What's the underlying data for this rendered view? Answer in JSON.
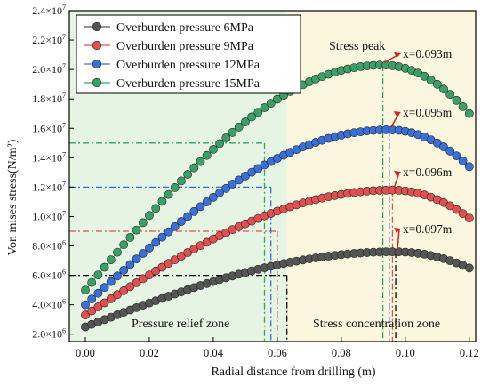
{
  "chart_data": {
    "type": "scatter",
    "xlabel": "Radial distance from drilling (m)",
    "ylabel": "Von mises stress(N/m²)",
    "xlim": [
      -0.005,
      0.122
    ],
    "ylim": [
      1500000,
      24000000
    ],
    "x_ticks": [
      0.0,
      0.02,
      0.04,
      0.06,
      0.08,
      0.1,
      0.12
    ],
    "x_tick_labels": [
      "0.00",
      "0.02",
      "0.04",
      "0.06",
      "0.08",
      "0.10",
      "0.12"
    ],
    "y_ticks": [
      2000000,
      4000000,
      6000000,
      8000000,
      10000000,
      12000000,
      14000000,
      16000000,
      18000000,
      20000000,
      22000000,
      24000000
    ],
    "y_tick_labels": [
      {
        "mant": "2.0",
        "exp": "6"
      },
      {
        "mant": "4.0",
        "exp": "6"
      },
      {
        "mant": "6.0",
        "exp": "6"
      },
      {
        "mant": "8.0",
        "exp": "6"
      },
      {
        "mant": "1.0",
        "exp": "7"
      },
      {
        "mant": "1.2",
        "exp": "7"
      },
      {
        "mant": "1.4",
        "exp": "7"
      },
      {
        "mant": "1.6",
        "exp": "7"
      },
      {
        "mant": "1.8",
        "exp": "7"
      },
      {
        "mant": "2.0",
        "exp": "7"
      },
      {
        "mant": "2.2",
        "exp": "7"
      },
      {
        "mant": "2.4",
        "exp": "7"
      }
    ],
    "y_tick_base": "×10",
    "legend_position": "top-left",
    "zones": [
      {
        "label": "Pressure relief zone",
        "x_range": [
          -0.005,
          0.063
        ],
        "color": "#e6f5e3"
      },
      {
        "label": "Stress concentration zone",
        "x_range": [
          0.063,
          0.122
        ],
        "color": "#fbf7df"
      }
    ],
    "peak_label": "Stress peak",
    "series": [
      {
        "name": "Overburden pressure 6MPa",
        "color": "#555555",
        "base": 2500000,
        "peak": 7600000,
        "peak_x": 0.097,
        "end": 6500000,
        "ref_y": 6000000,
        "ref_x": 0.063,
        "annotation": "x=0.097m"
      },
      {
        "name": "Overburden pressure 9MPa",
        "color": "#e05050",
        "base": 3300000,
        "peak": 11800000,
        "peak_x": 0.096,
        "end": 9900000,
        "ref_y": 9000000,
        "ref_x": 0.06,
        "annotation": "x=0.096m"
      },
      {
        "name": "Overburden pressure 12MPa",
        "color": "#3a6fd8",
        "base": 4000000,
        "peak": 15900000,
        "peak_x": 0.095,
        "end": 13400000,
        "ref_y": 12000000,
        "ref_x": 0.058,
        "annotation": "x=0.095m"
      },
      {
        "name": "Overburden pressure 15MPa",
        "color": "#3aa068",
        "base": 5000000,
        "peak": 20300000,
        "peak_x": 0.093,
        "end": 17000000,
        "ref_y": 15000000,
        "ref_x": 0.056,
        "annotation": "x=0.093m"
      }
    ]
  }
}
